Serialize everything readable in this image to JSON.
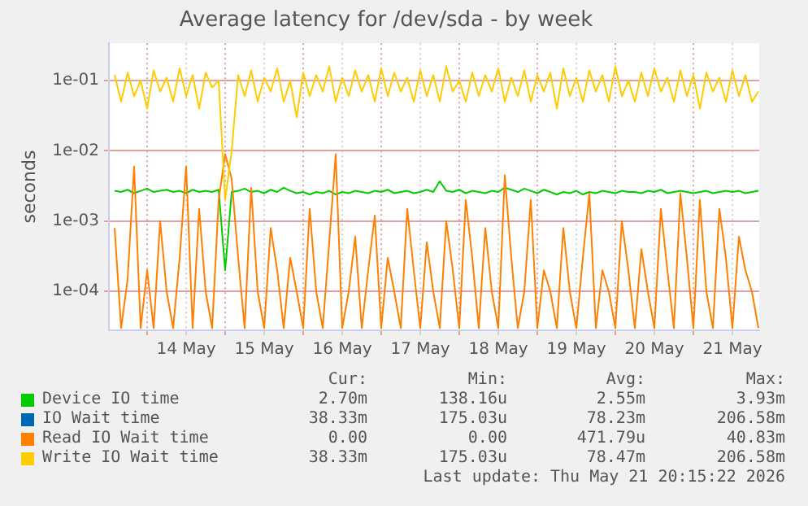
{
  "chart_data": {
    "type": "line",
    "title": "Average latency for /dev/sda - by week",
    "ylabel": "seconds",
    "log": "y",
    "grid": true,
    "legend": "bottom",
    "xlim": [
      "2026-05-13T12:15",
      "2026-05-21T20:15"
    ],
    "xticks": [
      {
        "value": "2026-05-14T00:00",
        "label": null
      },
      {
        "value": "2026-05-14T12:00",
        "label": "14 May"
      },
      {
        "value": "2026-05-15T00:00",
        "label": null
      },
      {
        "value": "2026-05-15T12:00",
        "label": "15 May"
      },
      {
        "value": "2026-05-16T00:00",
        "label": null
      },
      {
        "value": "2026-05-16T12:00",
        "label": "16 May"
      },
      {
        "value": "2026-05-17T00:00",
        "label": null
      },
      {
        "value": "2026-05-17T12:00",
        "label": "17 May"
      },
      {
        "value": "2026-05-18T00:00",
        "label": null
      },
      {
        "value": "2026-05-18T12:00",
        "label": "18 May"
      },
      {
        "value": "2026-05-19T00:00",
        "label": null
      },
      {
        "value": "2026-05-19T12:00",
        "label": "19 May"
      },
      {
        "value": "2026-05-20T00:00",
        "label": null
      },
      {
        "value": "2026-05-20T12:00",
        "label": "20 May"
      },
      {
        "value": "2026-05-21T00:00",
        "label": null
      },
      {
        "value": "2026-05-21T12:00",
        "label": "21 May"
      }
    ],
    "ylim": [
      2.8e-05,
      0.34
    ],
    "yticks": [
      {
        "value": 0.0001,
        "label": "1e-04"
      },
      {
        "value": 0.001,
        "label": "1e-03"
      },
      {
        "value": 0.01,
        "label": "1e-02"
      },
      {
        "value": 0.1,
        "label": "1e-01"
      }
    ],
    "x": [
      "2026-05-13T14:00",
      "2026-05-13T16:00",
      "2026-05-13T18:00",
      "2026-05-13T20:00",
      "2026-05-13T22:00",
      "2026-05-14T00:00",
      "2026-05-14T02:00",
      "2026-05-14T04:00",
      "2026-05-14T06:00",
      "2026-05-14T08:00",
      "2026-05-14T10:00",
      "2026-05-14T12:00",
      "2026-05-14T14:00",
      "2026-05-14T16:00",
      "2026-05-14T18:00",
      "2026-05-14T20:00",
      "2026-05-14T22:00",
      "2026-05-15T00:00",
      "2026-05-15T02:00",
      "2026-05-15T04:00",
      "2026-05-15T06:00",
      "2026-05-15T08:00",
      "2026-05-15T10:00",
      "2026-05-15T12:00",
      "2026-05-15T14:00",
      "2026-05-15T16:00",
      "2026-05-15T18:00",
      "2026-05-15T20:00",
      "2026-05-15T22:00",
      "2026-05-16T00:00",
      "2026-05-16T02:00",
      "2026-05-16T04:00",
      "2026-05-16T06:00",
      "2026-05-16T08:00",
      "2026-05-16T10:00",
      "2026-05-16T12:00",
      "2026-05-16T14:00",
      "2026-05-16T16:00",
      "2026-05-16T18:00",
      "2026-05-16T20:00",
      "2026-05-16T22:00",
      "2026-05-17T00:00",
      "2026-05-17T02:00",
      "2026-05-17T04:00",
      "2026-05-17T06:00",
      "2026-05-17T08:00",
      "2026-05-17T10:00",
      "2026-05-17T12:00",
      "2026-05-17T14:00",
      "2026-05-17T16:00",
      "2026-05-17T18:00",
      "2026-05-17T20:00",
      "2026-05-17T22:00",
      "2026-05-18T00:00",
      "2026-05-18T02:00",
      "2026-05-18T04:00",
      "2026-05-18T06:00",
      "2026-05-18T08:00",
      "2026-05-18T10:00",
      "2026-05-18T12:00",
      "2026-05-18T14:00",
      "2026-05-18T16:00",
      "2026-05-18T18:00",
      "2026-05-18T20:00",
      "2026-05-18T22:00",
      "2026-05-19T00:00",
      "2026-05-19T02:00",
      "2026-05-19T04:00",
      "2026-05-19T06:00",
      "2026-05-19T08:00",
      "2026-05-19T10:00",
      "2026-05-19T12:00",
      "2026-05-19T14:00",
      "2026-05-19T16:00",
      "2026-05-19T18:00",
      "2026-05-19T20:00",
      "2026-05-19T22:00",
      "2026-05-20T00:00",
      "2026-05-20T02:00",
      "2026-05-20T04:00",
      "2026-05-20T06:00",
      "2026-05-20T08:00",
      "2026-05-20T10:00",
      "2026-05-20T12:00",
      "2026-05-20T14:00",
      "2026-05-20T16:00",
      "2026-05-20T18:00",
      "2026-05-20T20:00",
      "2026-05-20T22:00",
      "2026-05-21T00:00",
      "2026-05-21T02:00",
      "2026-05-21T04:00",
      "2026-05-21T06:00",
      "2026-05-21T08:00",
      "2026-05-21T10:00",
      "2026-05-21T12:00",
      "2026-05-21T14:00",
      "2026-05-21T16:00",
      "2026-05-21T18:00",
      "2026-05-21T20:00"
    ],
    "series": [
      {
        "name": "Device IO time",
        "color": "#00cc00",
        "values": [
          0.0027,
          0.0026,
          0.0028,
          0.0025,
          0.0027,
          0.0029,
          0.0026,
          0.0027,
          0.0028,
          0.0026,
          0.0027,
          0.0025,
          0.0028,
          0.0026,
          0.0027,
          0.0026,
          0.0028,
          0.0002,
          0.0026,
          0.0027,
          0.0029,
          0.0026,
          0.0027,
          0.0025,
          0.0028,
          0.0026,
          0.003,
          0.0027,
          0.0025,
          0.0026,
          0.0024,
          0.0026,
          0.0025,
          0.0027,
          0.0024,
          0.0026,
          0.0025,
          0.0027,
          0.0026,
          0.0025,
          0.0027,
          0.0026,
          0.0028,
          0.0025,
          0.0026,
          0.0027,
          0.0025,
          0.0026,
          0.0028,
          0.0026,
          0.0037,
          0.0027,
          0.0026,
          0.0028,
          0.0025,
          0.0027,
          0.0026,
          0.0025,
          0.0027,
          0.0026,
          0.003,
          0.0028,
          0.0026,
          0.0029,
          0.0027,
          0.0025,
          0.0028,
          0.0026,
          0.0024,
          0.0026,
          0.0025,
          0.0027,
          0.0024,
          0.0026,
          0.0025,
          0.0027,
          0.0026,
          0.0025,
          0.0027,
          0.0026,
          0.0026,
          0.0025,
          0.0027,
          0.0026,
          0.0028,
          0.0025,
          0.0026,
          0.0027,
          0.0026,
          0.0025,
          0.0026,
          0.0027,
          0.0025,
          0.0026,
          0.0027,
          0.0026,
          0.0027,
          0.0025,
          0.0026,
          0.0027
        ]
      },
      {
        "name": "IO Wait time",
        "color": "#0066b3",
        "values": [
          null,
          null,
          null,
          null,
          null,
          null,
          null,
          null,
          null,
          null,
          null,
          null,
          null,
          null,
          null,
          null,
          null,
          null,
          null,
          null,
          null,
          null,
          null,
          null,
          null,
          null,
          null,
          null,
          null,
          null,
          null,
          null,
          null,
          null,
          null,
          null,
          null,
          null,
          null,
          null,
          null,
          null,
          null,
          null,
          null,
          null,
          null,
          null,
          null,
          null,
          null,
          null,
          null,
          null,
          null,
          null,
          null,
          null,
          null,
          null,
          null,
          null,
          null,
          null,
          null,
          null,
          null,
          null,
          null,
          null,
          null,
          null,
          null,
          null,
          null,
          null,
          null,
          null,
          null,
          null,
          null,
          null,
          null,
          null,
          null,
          null,
          null,
          null,
          null,
          null,
          null,
          null,
          null,
          null,
          null,
          null,
          null,
          null,
          null,
          null
        ]
      },
      {
        "name": "Read IO Wait time",
        "color": "#ff8000",
        "values": [
          0.0008,
          3e-05,
          0.00015,
          0.006,
          3e-05,
          0.0002,
          3e-05,
          0.001,
          0.0001,
          3e-05,
          0.0003,
          0.006,
          3e-05,
          0.0015,
          0.0001,
          3e-05,
          0.002,
          0.009,
          0.004,
          0.0003,
          3e-05,
          0.003,
          0.0001,
          3e-05,
          0.0008,
          0.0002,
          3e-05,
          0.0003,
          0.0001,
          3e-05,
          0.0015,
          0.0001,
          3e-05,
          0.0005,
          0.009,
          3e-05,
          0.0001,
          0.0006,
          3e-05,
          0.0002,
          0.0012,
          3e-05,
          0.0003,
          0.0001,
          3e-05,
          0.0015,
          0.0002,
          3e-05,
          0.0005,
          0.0001,
          3e-05,
          0.001,
          0.0002,
          3e-05,
          0.002,
          0.0003,
          3e-05,
          0.0008,
          0.0001,
          3e-05,
          0.0045,
          0.0003,
          3e-05,
          0.0001,
          0.002,
          3e-05,
          0.0002,
          0.0001,
          3e-05,
          0.0008,
          0.0001,
          3e-05,
          0.0003,
          0.0025,
          3e-05,
          0.0002,
          0.0001,
          3e-05,
          0.001,
          0.0002,
          3e-05,
          0.0004,
          0.0001,
          3e-05,
          0.0015,
          0.0002,
          3e-05,
          0.0025,
          0.0003,
          3e-05,
          0.002,
          0.0001,
          3e-05,
          0.0015,
          0.0003,
          3e-05,
          0.0006,
          0.0002,
          0.0001,
          3e-05
        ]
      },
      {
        "name": "Write IO Wait time",
        "color": "#ffcc00",
        "values": [
          0.12,
          0.05,
          0.13,
          0.06,
          0.1,
          0.04,
          0.14,
          0.07,
          0.11,
          0.05,
          0.15,
          0.06,
          0.12,
          0.04,
          0.13,
          0.08,
          0.1,
          0.002,
          0.01,
          0.12,
          0.06,
          0.14,
          0.05,
          0.11,
          0.07,
          0.15,
          0.05,
          0.1,
          0.03,
          0.13,
          0.06,
          0.12,
          0.07,
          0.16,
          0.05,
          0.11,
          0.06,
          0.14,
          0.07,
          0.12,
          0.05,
          0.15,
          0.06,
          0.13,
          0.07,
          0.11,
          0.05,
          0.14,
          0.06,
          0.12,
          0.05,
          0.16,
          0.07,
          0.1,
          0.05,
          0.13,
          0.06,
          0.12,
          0.07,
          0.15,
          0.05,
          0.11,
          0.06,
          0.14,
          0.05,
          0.12,
          0.07,
          0.13,
          0.04,
          0.15,
          0.06,
          0.11,
          0.05,
          0.14,
          0.07,
          0.12,
          0.05,
          0.16,
          0.06,
          0.1,
          0.05,
          0.13,
          0.06,
          0.15,
          0.07,
          0.11,
          0.05,
          0.14,
          0.06,
          0.12,
          0.04,
          0.13,
          0.07,
          0.11,
          0.05,
          0.14,
          0.06,
          0.12,
          0.05,
          0.07
        ]
      }
    ],
    "annotations": [
      "Cur:",
      "Min:",
      "Avg:",
      "Max:",
      "2.70m",
      "138.16u",
      "2.55m",
      "3.93m",
      "38.33m",
      "175.03u",
      "78.23m",
      "206.58m",
      "0.00",
      "0.00",
      "471.79u",
      "40.83m",
      "38.33m",
      "175.03u",
      "78.47m",
      "206.58m",
      "Last update: Thu May 21 20:15:22 2026"
    ]
  }
}
